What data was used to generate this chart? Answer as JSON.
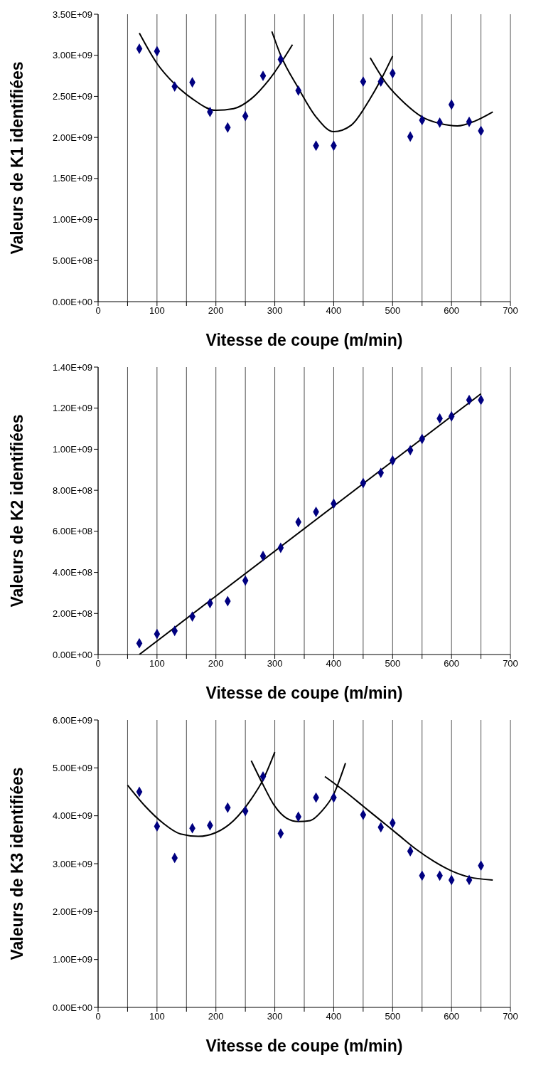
{
  "chart_data": [
    {
      "type": "scatter",
      "xlabel": "Vitesse de coupe (m/min)",
      "ylabel": "Valeurs de K1 identifiées",
      "grid": "x",
      "line_style": "solid",
      "x": [
        70,
        100,
        130,
        160,
        190,
        220,
        250,
        280,
        310,
        340,
        370,
        400,
        450,
        480,
        500,
        530,
        550,
        580,
        600,
        630,
        650
      ],
      "xlim": [
        0,
        700
      ],
      "xticks": [
        0,
        {
          "value": 50,
          "label": null
        },
        100,
        {
          "value": 150,
          "label": null
        },
        200,
        {
          "value": 250,
          "label": null
        },
        300,
        {
          "value": 350,
          "label": null
        },
        400,
        {
          "value": 450,
          "label": null
        },
        500,
        {
          "value": 550,
          "label": null
        },
        600,
        {
          "value": 650,
          "label": null
        },
        700
      ],
      "ylim": [
        0,
        3500000000
      ],
      "yticks": [
        {
          "value": 0,
          "label": "0.00E+00"
        },
        {
          "value": 500000000,
          "label": "5.00E+08"
        },
        {
          "value": 1000000000,
          "label": "1.00E+09"
        },
        {
          "value": 1500000000,
          "label": "1.50E+09"
        },
        {
          "value": 2000000000,
          "label": "2.00E+09"
        },
        {
          "value": 2500000000,
          "label": "2.50E+09"
        },
        {
          "value": 3000000000,
          "label": "3.00E+09"
        },
        {
          "value": 3500000000,
          "label": "3.50E+09"
        }
      ],
      "series": [
        {
          "color": "#000080",
          "marker": "diamond",
          "values": [
            3080000000,
            3050000000,
            2620000000,
            2670000000,
            2310000000,
            2120000000,
            2260000000,
            2750000000,
            2950000000,
            2570000000,
            1900000000,
            1900000000,
            2680000000,
            2680000000,
            2780000000,
            2010000000,
            2210000000,
            2180000000,
            2400000000,
            2190000000,
            2080000000
          ]
        },
        {
          "type": "line",
          "color": "#000000",
          "x": [
            70,
            100,
            130,
            160,
            200,
            230,
            260,
            290,
            330
          ],
          "values": [
            3270000000,
            2900000000,
            2650000000,
            2470000000,
            2330000000,
            2350000000,
            2470000000,
            2700000000,
            3130000000
          ]
        },
        {
          "type": "line",
          "color": "#000000",
          "x": [
            295,
            310,
            340,
            370,
            400,
            430,
            460,
            480,
            500
          ],
          "values": [
            3290000000,
            3000000000,
            2600000000,
            2250000000,
            2070000000,
            2150000000,
            2450000000,
            2700000000,
            2990000000
          ]
        },
        {
          "type": "line",
          "color": "#000000",
          "x": [
            462,
            490,
            520,
            550,
            580,
            610,
            640,
            670
          ],
          "values": [
            2970000000,
            2650000000,
            2420000000,
            2250000000,
            2170000000,
            2140000000,
            2200000000,
            2310000000
          ]
        }
      ]
    },
    {
      "type": "scatter",
      "xlabel": "Vitesse de coupe (m/min)",
      "ylabel": "Valeurs de K2 identifiées",
      "grid": "x",
      "line_style": "solid",
      "x": [
        70,
        100,
        130,
        160,
        190,
        220,
        250,
        280,
        310,
        340,
        370,
        400,
        450,
        480,
        500,
        530,
        550,
        580,
        600,
        630,
        650
      ],
      "xlim": [
        0,
        700
      ],
      "xticks": [
        0,
        {
          "value": 50,
          "label": null
        },
        100,
        {
          "value": 150,
          "label": null
        },
        200,
        {
          "value": 250,
          "label": null
        },
        300,
        {
          "value": 350,
          "label": null
        },
        400,
        {
          "value": 450,
          "label": null
        },
        500,
        {
          "value": 550,
          "label": null
        },
        600,
        {
          "value": 650,
          "label": null
        },
        700
      ],
      "ylim": [
        0,
        1400000000
      ],
      "yticks": [
        {
          "value": 0,
          "label": "0.00E+00"
        },
        {
          "value": 200000000,
          "label": "2.00E+08"
        },
        {
          "value": 400000000,
          "label": "4.00E+08"
        },
        {
          "value": 600000000,
          "label": "6.00E+08"
        },
        {
          "value": 800000000,
          "label": "8.00E+08"
        },
        {
          "value": 1000000000,
          "label": "1.00E+09"
        },
        {
          "value": 1200000000,
          "label": "1.20E+09"
        },
        {
          "value": 1400000000,
          "label": "1.40E+09"
        }
      ],
      "series": [
        {
          "color": "#000080",
          "marker": "diamond",
          "values": [
            55000000,
            100000000,
            115000000,
            185000000,
            250000000,
            260000000,
            360000000,
            480000000,
            520000000,
            645000000,
            695000000,
            735000000,
            835000000,
            885000000,
            945000000,
            995000000,
            1050000000,
            1150000000,
            1160000000,
            1240000000,
            1240000000
          ]
        },
        {
          "type": "line",
          "color": "#000000",
          "x": [
            70,
            650
          ],
          "values": [
            0,
            1270000000
          ]
        }
      ]
    },
    {
      "type": "scatter",
      "xlabel": "Vitesse de coupe (m/min)",
      "ylabel": "Valeurs de K3 identifiées",
      "grid": "x",
      "line_style": "solid",
      "x": [
        70,
        100,
        130,
        160,
        190,
        220,
        250,
        280,
        310,
        340,
        370,
        400,
        450,
        480,
        500,
        530,
        550,
        580,
        600,
        630,
        650
      ],
      "xlim": [
        0,
        700
      ],
      "xticks": [
        0,
        {
          "value": 50,
          "label": null
        },
        100,
        {
          "value": 150,
          "label": null
        },
        200,
        {
          "value": 250,
          "label": null
        },
        300,
        {
          "value": 350,
          "label": null
        },
        400,
        {
          "value": 450,
          "label": null
        },
        500,
        {
          "value": 550,
          "label": null
        },
        600,
        {
          "value": 650,
          "label": null
        },
        700
      ],
      "ylim": [
        0,
        6000000000
      ],
      "yticks": [
        {
          "value": 0,
          "label": "0.00E+00"
        },
        {
          "value": 1000000000,
          "label": "1.00E+09"
        },
        {
          "value": 2000000000,
          "label": "2.00E+09"
        },
        {
          "value": 3000000000,
          "label": "3.00E+09"
        },
        {
          "value": 4000000000,
          "label": "4.00E+09"
        },
        {
          "value": 5000000000,
          "label": "5.00E+09"
        },
        {
          "value": 6000000000,
          "label": "6.00E+09"
        }
      ],
      "series": [
        {
          "color": "#000080",
          "marker": "diamond",
          "values": [
            4500000000,
            3780000000,
            3120000000,
            3740000000,
            3800000000,
            4170000000,
            4100000000,
            4820000000,
            3630000000,
            3980000000,
            4380000000,
            4380000000,
            4020000000,
            3760000000,
            3850000000,
            3260000000,
            2750000000,
            2750000000,
            2660000000,
            2660000000,
            2960000000
          ]
        },
        {
          "type": "line",
          "color": "#000000",
          "x": [
            50,
            80,
            110,
            140,
            170,
            200,
            230,
            260,
            280,
            300
          ],
          "values": [
            4640000000,
            4200000000,
            3850000000,
            3620000000,
            3570000000,
            3650000000,
            3900000000,
            4350000000,
            4750000000,
            5330000000
          ]
        },
        {
          "type": "line",
          "color": "#000000",
          "x": [
            260,
            280,
            300,
            320,
            340,
            360,
            380,
            400,
            420
          ],
          "values": [
            5150000000,
            4650000000,
            4200000000,
            3950000000,
            3880000000,
            3900000000,
            4100000000,
            4450000000,
            5100000000
          ]
        },
        {
          "type": "line",
          "color": "#000000",
          "x": [
            385,
            420,
            450,
            480,
            510,
            540,
            570,
            600,
            630,
            670
          ],
          "values": [
            4820000000,
            4500000000,
            4200000000,
            3900000000,
            3600000000,
            3300000000,
            3050000000,
            2850000000,
            2720000000,
            2660000000
          ]
        }
      ]
    }
  ]
}
